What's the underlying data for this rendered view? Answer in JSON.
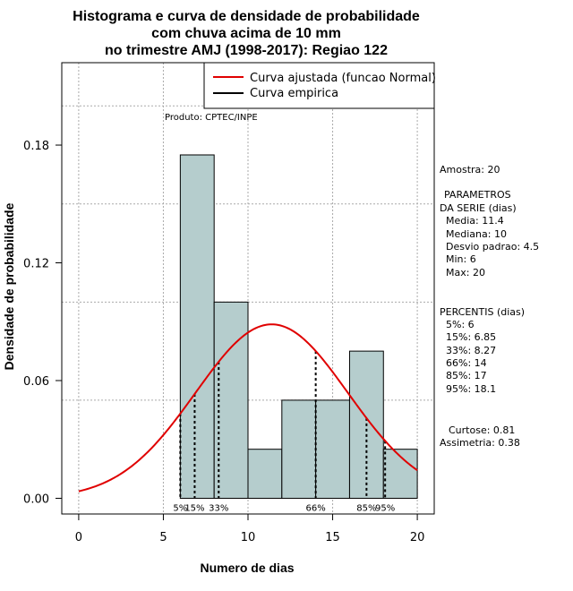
{
  "chart_data": {
    "type": "bar",
    "title_lines": [
      "Histograma e curva de densidade de probabilidade",
      "com chuva acima de 10 mm",
      "no trimestre AMJ (1998-2017): Regiao 122"
    ],
    "xlabel": "Numero de dias",
    "ylabel": "Densidade de probabilidade",
    "xlim": [
      -1,
      21
    ],
    "ylim": [
      -0.008,
      0.222
    ],
    "xticks": [
      0,
      5,
      10,
      15,
      20
    ],
    "yticks": [
      0.0,
      0.06,
      0.12,
      0.18
    ],
    "ytick_labels": [
      "0.00",
      "0.06",
      "0.12",
      "0.18"
    ],
    "grid_x": [
      0,
      5,
      10,
      15,
      20
    ],
    "grid_y": [
      0.05,
      0.1,
      0.15,
      0.2
    ],
    "bins": [
      {
        "start": 6,
        "end": 8,
        "density": 0.175
      },
      {
        "start": 8,
        "end": 10,
        "density": 0.1
      },
      {
        "start": 10,
        "end": 12,
        "density": 0.025
      },
      {
        "start": 12,
        "end": 14,
        "density": 0.05
      },
      {
        "start": 14,
        "end": 16,
        "density": 0.05
      },
      {
        "start": 16,
        "end": 18,
        "density": 0.075
      },
      {
        "start": 18,
        "end": 20,
        "density": 0.025
      }
    ],
    "bar_color": "#b5cdcd",
    "normal_curve": {
      "mean": 11.4,
      "sd": 4.5,
      "x_range": [
        0,
        20
      ],
      "color": "#e00000"
    },
    "legend": {
      "position": "top-right",
      "entries": [
        {
          "label": "Curva ajustada (funcao Normal)",
          "color": "#e00000"
        },
        {
          "label": "Curva empirica",
          "color": "#000000"
        }
      ]
    },
    "percentiles": [
      {
        "label": "5%",
        "value": 6
      },
      {
        "label": "15%",
        "value": 6.85
      },
      {
        "label": "33%",
        "value": 8.27
      },
      {
        "label": "66%",
        "value": 14
      },
      {
        "label": "85%",
        "value": 17
      },
      {
        "label": "95%",
        "value": 18.1
      }
    ],
    "annotation_produto": "Produto: CPTEC/INPE"
  },
  "stats_panel": {
    "amostra": "Amostra: 20",
    "param_title_1": "PARAMETROS",
    "param_title_2": "DA SERIE (dias)",
    "media": "Media: 11.4",
    "mediana": "Mediana: 10",
    "desvio": "Desvio padrao: 4.5",
    "min": "Min: 6",
    "max": "Max: 20",
    "perc_title": "PERCENTIS (dias)",
    "p5": "5%: 6",
    "p15": "15%: 6.85",
    "p33": "33%: 8.27",
    "p66": "66%: 14",
    "p85": "85%: 17",
    "p95": "95%: 18.1",
    "curtose": "Curtose: 0.81",
    "assimetria": "Assimetria: 0.38"
  }
}
